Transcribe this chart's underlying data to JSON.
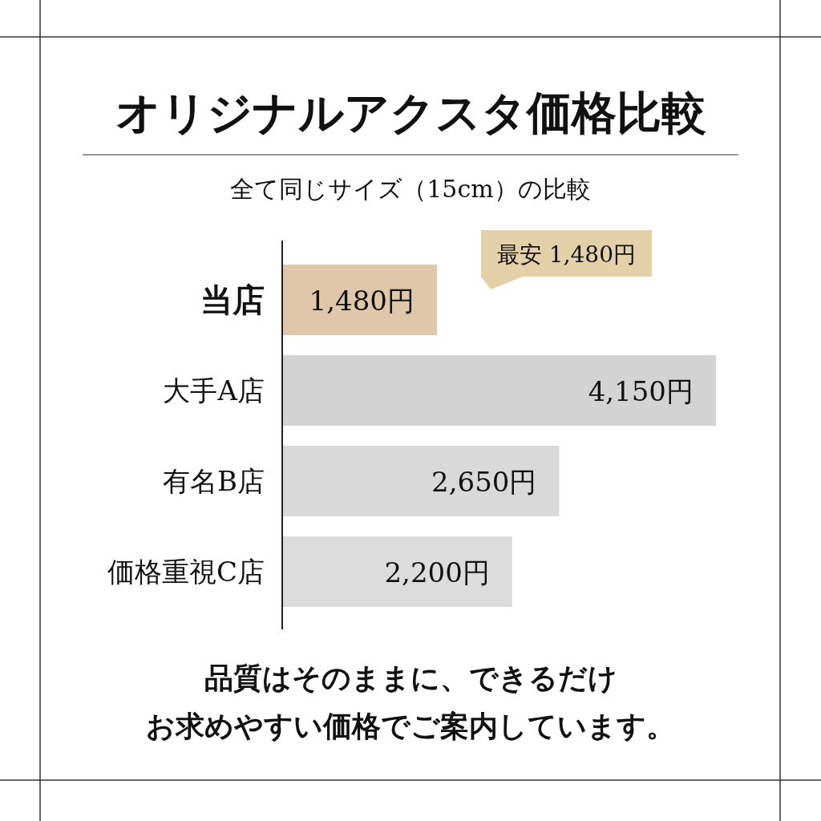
{
  "chart_data": {
    "type": "bar",
    "orientation": "horizontal",
    "title": "オリジナルアクスタ価格比較",
    "subtitle": "全て同じサイズ（15cm）の比較",
    "categories": [
      "当店",
      "大手A店",
      "有名B店",
      "価格重視C店"
    ],
    "values": [
      1480,
      4150,
      2650,
      2200
    ],
    "colors": [
      "#e0c6aa",
      "#d3d3d3",
      "#d9d9d9",
      "#dcdcdc"
    ],
    "value_labels": [
      "1,480円",
      "4,150円",
      "2,650円",
      "2,200円"
    ],
    "annotations": [
      "最安 1,480円",
      "品質はそのままに、できるだけ",
      "お求めやすい価格でご案内しています。"
    ]
  }
}
